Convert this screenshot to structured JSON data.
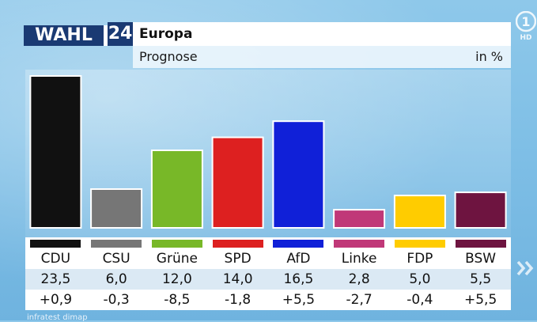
{
  "header": {
    "brand": "WAHL",
    "year": "24",
    "title": "Europa",
    "subtitle": "Prognose",
    "unit": "in %"
  },
  "channel_logo": "HD",
  "source": "infratest dimap",
  "colors": {
    "header_blue": "#1a3a73"
  },
  "icons": {
    "channel_logo": "ard-one-logo-icon",
    "next": "double-chevron-right-icon"
  },
  "chart_data": {
    "type": "bar",
    "title": "Europa",
    "subtitle": "Prognose",
    "unit": "in %",
    "categories": [
      "CDU",
      "CSU",
      "Grüne",
      "SPD",
      "AfD",
      "Linke",
      "FDP",
      "BSW"
    ],
    "values": [
      23.5,
      6.0,
      12.0,
      14.0,
      16.5,
      2.8,
      5.0,
      5.5
    ],
    "value_labels": [
      "23,5",
      "6,0",
      "12,0",
      "14,0",
      "16,5",
      "2,8",
      "5,0",
      "5,5"
    ],
    "changes": [
      "+0,9",
      "-0,3",
      "-8,5",
      "-1,8",
      "+5,5",
      "-2,7",
      "-0,4",
      "+5,5"
    ],
    "colors": [
      "#111111",
      "#767676",
      "#78b828",
      "#dd2020",
      "#1020d8",
      "#c03878",
      "#ffcc00",
      "#6e1440"
    ],
    "ylim": [
      0,
      25
    ],
    "grid": false,
    "legend": "none"
  }
}
